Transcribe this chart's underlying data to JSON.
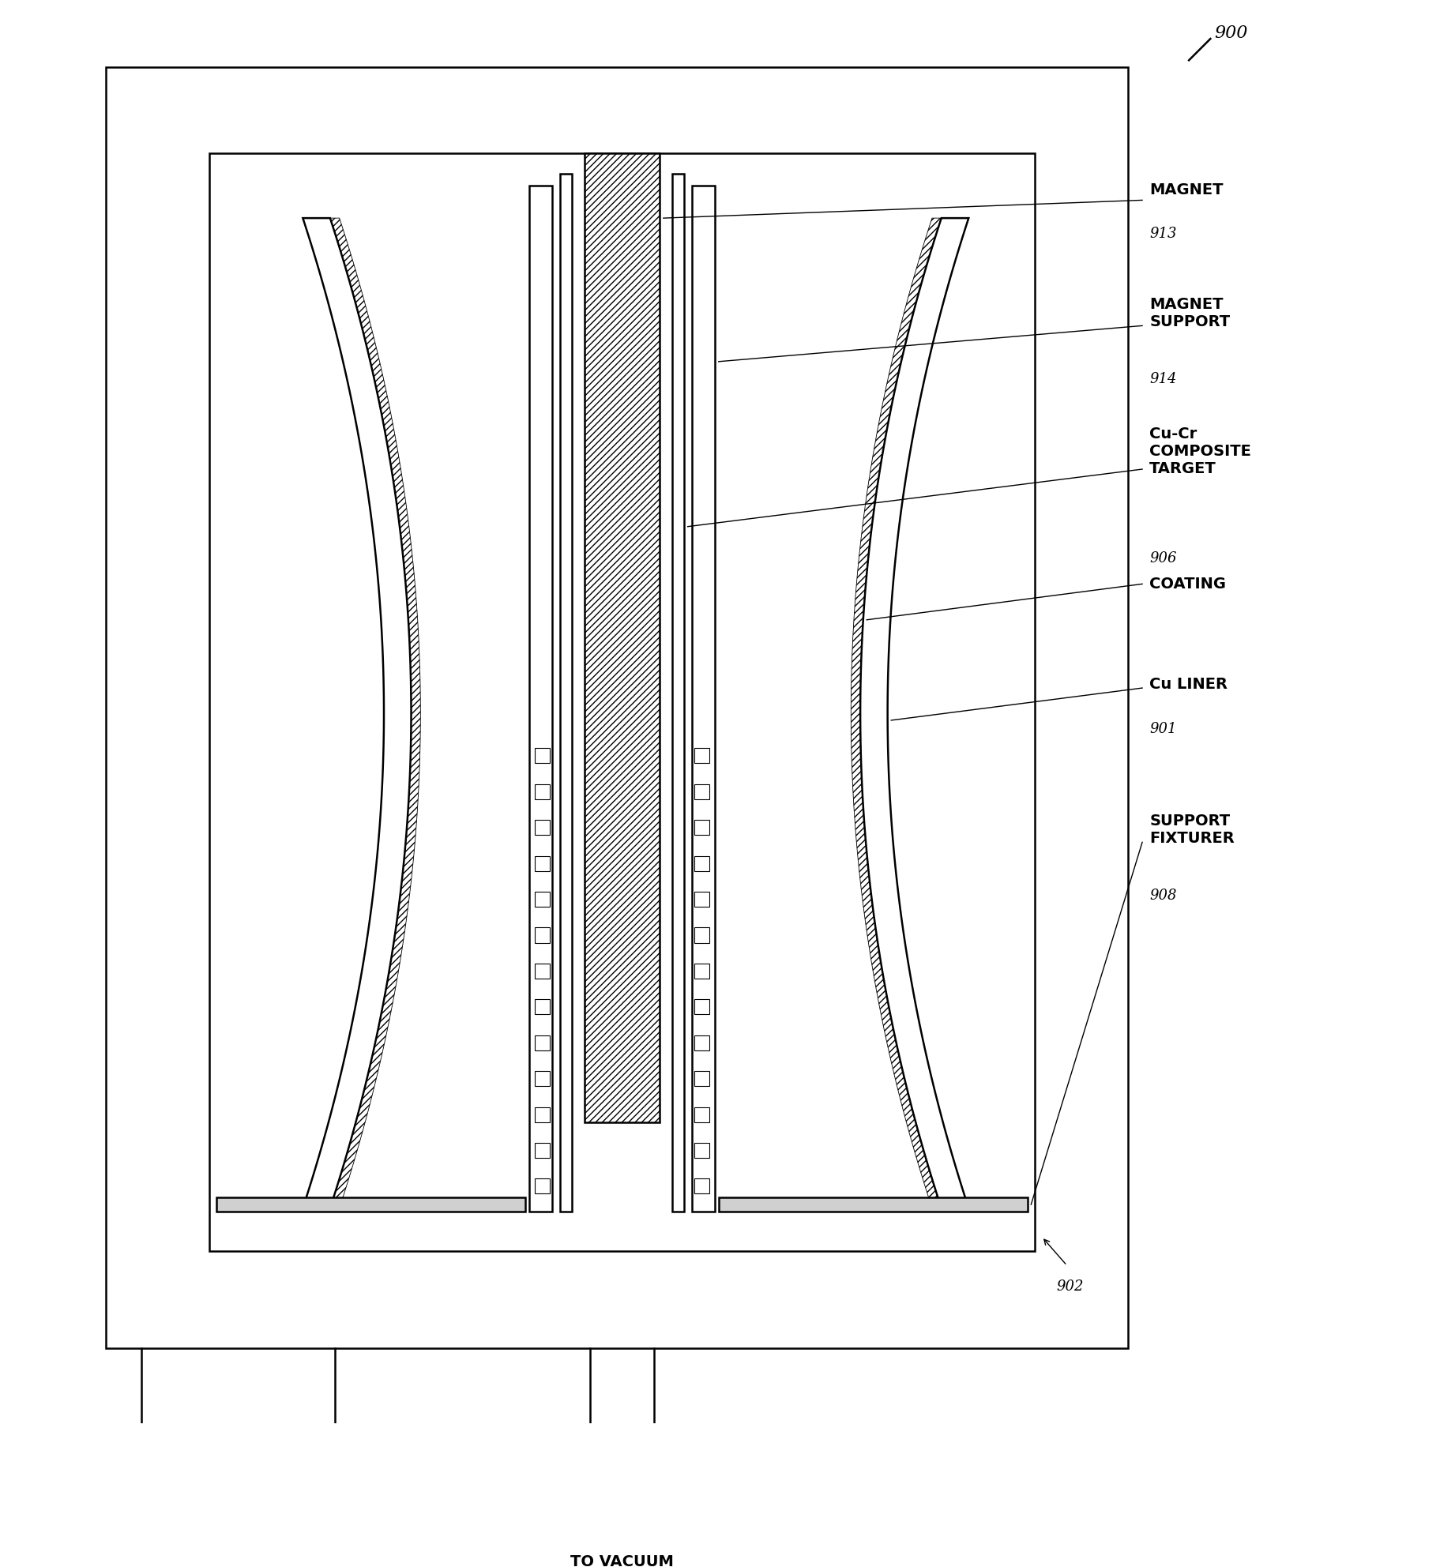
{
  "bg_color": "#ffffff",
  "line_color": "#000000",
  "figure_num": "900",
  "labels": {
    "magnet": "MAGNET",
    "magnet_num": "913",
    "magnet_support": "MAGNET\nSUPPORT",
    "magnet_support_num": "914",
    "cu_cr": "Cu-Cr\nCOMPOSITE\nTARGET",
    "cu_cr_num": "906",
    "coating": "COATING",
    "cu_liner": "Cu LINER",
    "cu_liner_num": "901",
    "support_fixturer": "SUPPORT\nFIXTURER",
    "support_fixturer_num": "908",
    "chamber_num": "902",
    "vacuum": "TO VACUUM\nPUMP"
  },
  "font_size_label": 14,
  "font_size_num": 13
}
